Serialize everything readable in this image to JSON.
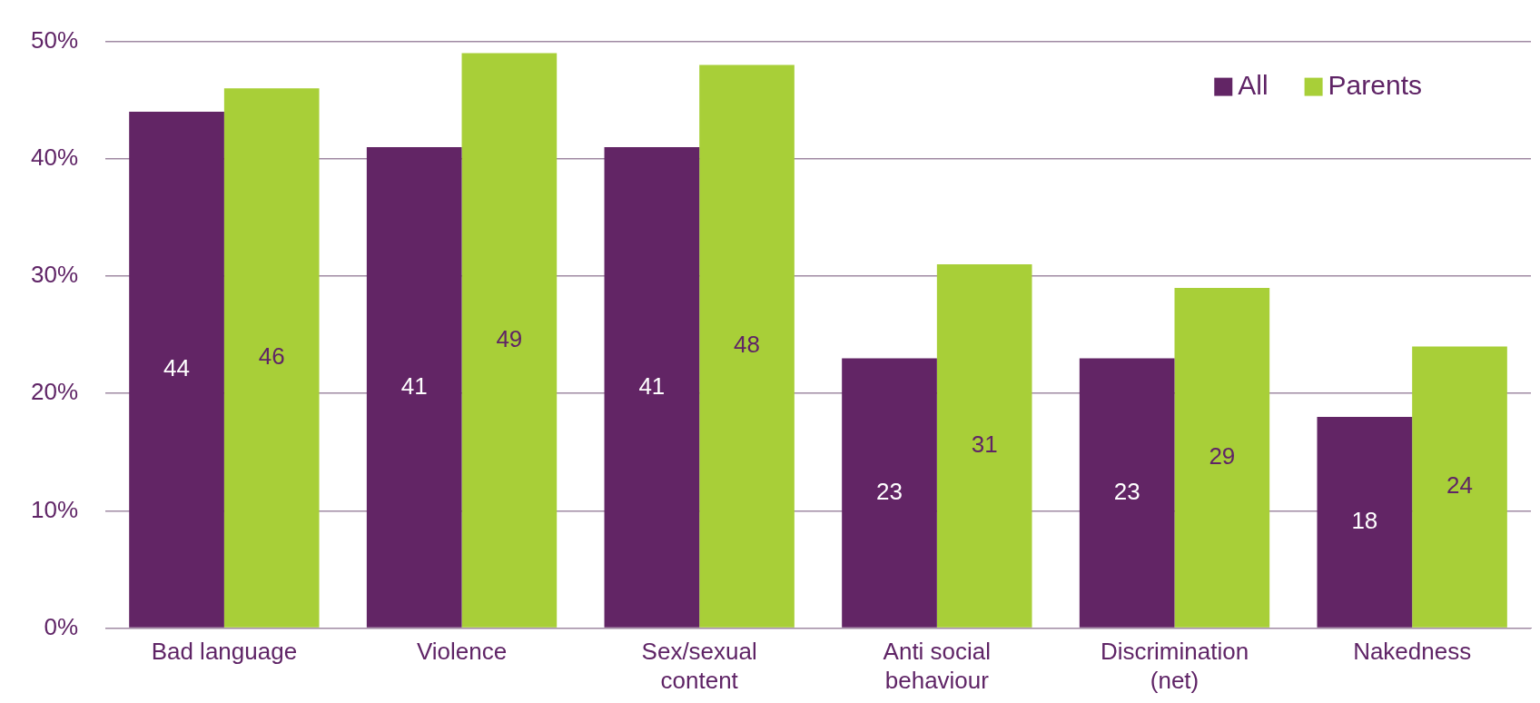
{
  "chart_data": {
    "type": "bar",
    "categories": [
      "Bad language",
      "Violence",
      "Sex/sexual content",
      "Anti social behaviour",
      "Discrimination (net)",
      "Nakedness"
    ],
    "series": [
      {
        "name": "All",
        "color": "#622565",
        "values": [
          44,
          41,
          41,
          23,
          23,
          18
        ]
      },
      {
        "name": "Parents",
        "color": "#a8cf38",
        "values": [
          46,
          49,
          48,
          31,
          29,
          24
        ]
      }
    ],
    "ylim": [
      0,
      50
    ],
    "yticks": [
      {
        "value": 0,
        "label": "0%"
      },
      {
        "value": 10,
        "label": "10%"
      },
      {
        "value": 20,
        "label": "20%"
      },
      {
        "value": 30,
        "label": "30%"
      },
      {
        "value": 40,
        "label": "40%"
      },
      {
        "value": 50,
        "label": "50%"
      }
    ],
    "grid": "y",
    "legend": "top right",
    "data_labels": true
  }
}
